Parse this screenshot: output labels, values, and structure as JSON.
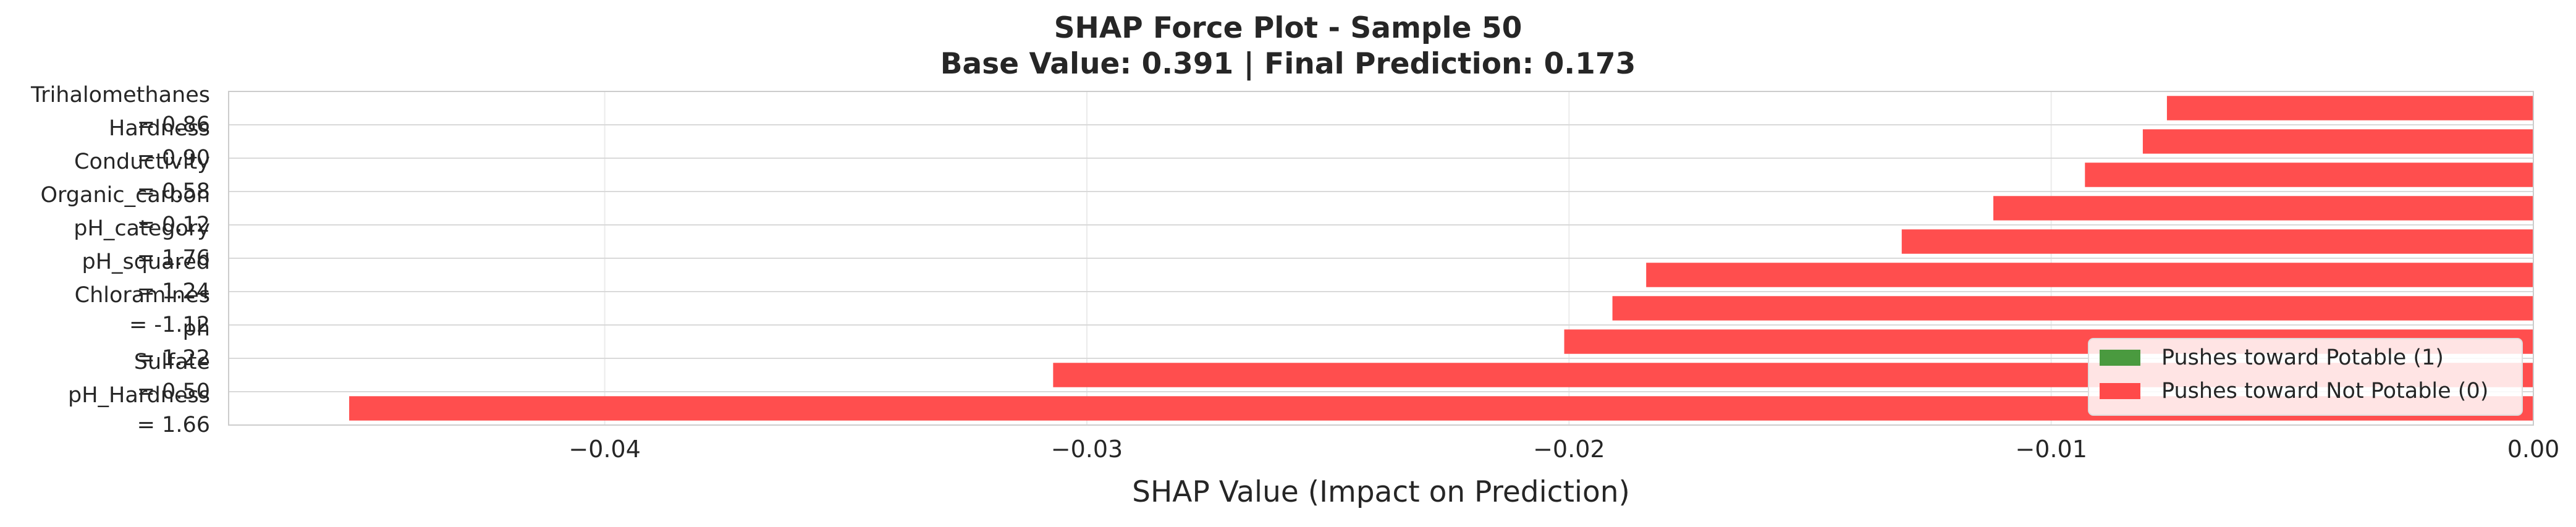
{
  "chart_data": {
    "type": "bar",
    "orientation": "horizontal",
    "title": "SHAP Force Plot - Sample 50",
    "subtitle": "Base Value: 0.391 | Final Prediction: 0.173",
    "xlabel": "SHAP Value (Impact on Prediction)",
    "ylabel": "",
    "xlim": [
      -0.0478,
      0.0
    ],
    "xticks": [
      -0.04,
      -0.03,
      -0.02,
      -0.01,
      0.0
    ],
    "xtick_labels": [
      "−0.04",
      "−0.03",
      "−0.02",
      "−0.01",
      "0.00"
    ],
    "grid": true,
    "legend_position": "lower-right",
    "legend": [
      {
        "label": "Pushes toward Potable (1)",
        "color": "#4a9a3f"
      },
      {
        "label": "Pushes toward Not Potable (0)",
        "color": "#ff4a4a"
      }
    ],
    "categories": [
      [
        "Trihalomethanes",
        "= 0.86"
      ],
      [
        "Hardness",
        "= 0.90"
      ],
      [
        "Conductivity",
        "= 0.58"
      ],
      [
        "Organic_carbon",
        "= 0.12"
      ],
      [
        "pH_category",
        "= 1.76"
      ],
      [
        "pH_squared",
        "= 1.24"
      ],
      [
        "Chloramines",
        "= -1.12"
      ],
      [
        "ph",
        "= 1.22"
      ],
      [
        "Sulfate",
        "= 0.50"
      ],
      [
        "pH_Hardness",
        "= 1.66"
      ]
    ],
    "values": [
      -0.0076,
      -0.0081,
      -0.0093,
      -0.0112,
      -0.0131,
      -0.0184,
      -0.0191,
      -0.0201,
      -0.0307,
      -0.0453
    ],
    "bar_color": "#ff4a4a"
  }
}
